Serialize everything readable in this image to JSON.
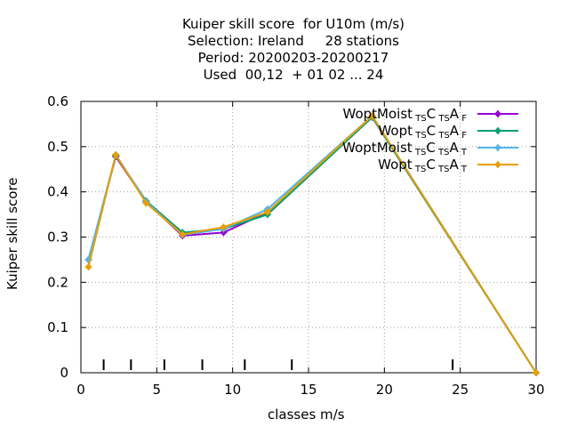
{
  "chart_data": {
    "type": "line",
    "title_lines": [
      "Kuiper skill score  for U10m (m/s)",
      "Selection: Ireland     28 stations",
      "Period: 20200203-20200217",
      "Used  00,12  + 01 02 ... 24"
    ],
    "xlabel": "classes m/s",
    "ylabel": "Kuiper skill score",
    "xlim": [
      0,
      30
    ],
    "ylim": [
      0,
      0.6
    ],
    "xticks": [
      0,
      5,
      10,
      15,
      20,
      25,
      30
    ],
    "xtick_labels": [
      "0",
      "5",
      "10",
      "15",
      "20",
      "25",
      "30"
    ],
    "yticks": [
      0,
      0.1,
      0.2,
      0.3,
      0.4,
      0.5,
      0.6
    ],
    "ytick_labels": [
      "0",
      "0.1",
      "0.2",
      "0.3",
      "0.4",
      "0.5",
      "0.6"
    ],
    "grid": true,
    "legend_position": "top-right",
    "class_boundaries": [
      1.5,
      3.3,
      5.5,
      8.0,
      10.8,
      13.9,
      24.5
    ],
    "series": [
      {
        "name": "WoptMoist",
        "sub1": "TS",
        "mid": "C",
        "sub2": "TS",
        "mid2": "A",
        "sub3": "F",
        "color": "#9400d3",
        "x": [
          0.5,
          2.3,
          4.3,
          6.7,
          9.4,
          12.3,
          19.2,
          30.0
        ],
        "y": [
          0.25,
          0.478,
          0.378,
          0.303,
          0.31,
          0.355,
          0.565,
          0.0
        ]
      },
      {
        "name": "Wopt",
        "sub1": "TS",
        "mid": "C",
        "sub2": "TS",
        "mid2": "A",
        "sub3": "F",
        "color": "#009e73",
        "x": [
          0.5,
          2.3,
          4.3,
          6.7,
          9.4,
          12.3,
          19.2,
          30.0
        ],
        "y": [
          0.25,
          0.48,
          0.38,
          0.31,
          0.318,
          0.35,
          0.565,
          0.0
        ]
      },
      {
        "name": "WoptMoist",
        "sub1": "TS",
        "mid": "C",
        "sub2": "TS",
        "mid2": "A",
        "sub3": "T",
        "color": "#56b4e9",
        "x": [
          0.5,
          2.3,
          4.3,
          6.7,
          9.4,
          12.3,
          19.2,
          30.0
        ],
        "y": [
          0.25,
          0.482,
          0.378,
          0.305,
          0.318,
          0.362,
          0.568,
          0.0
        ]
      },
      {
        "name": "Wopt",
        "sub1": "TS",
        "mid": "C",
        "sub2": "TS",
        "mid2": "A",
        "sub3": "T",
        "color": "#e69f00",
        "x": [
          0.5,
          2.3,
          4.3,
          6.7,
          9.4,
          12.3,
          19.2,
          30.0
        ],
        "y": [
          0.234,
          0.482,
          0.375,
          0.306,
          0.322,
          0.355,
          0.568,
          0.0
        ]
      }
    ]
  }
}
